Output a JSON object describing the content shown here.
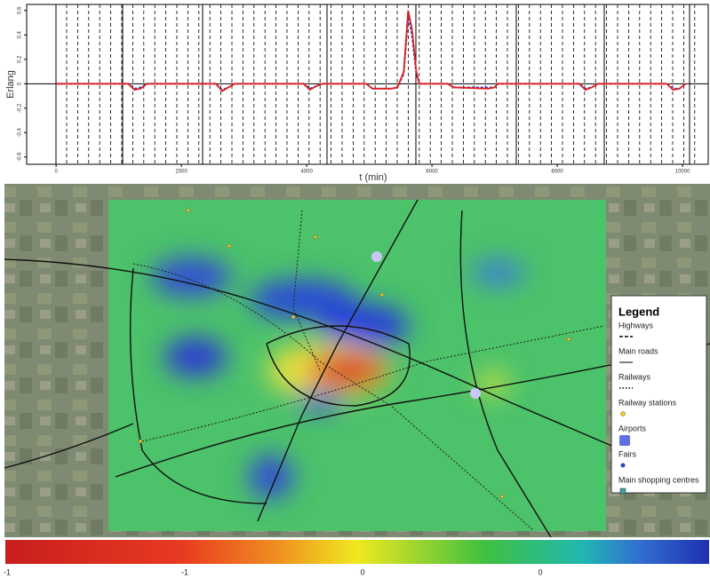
{
  "chart_data": {
    "type": "line",
    "ylabel": "Erlang",
    "xlabel": "t (min)",
    "xlim": [
      -470,
      10410
    ],
    "ylim": [
      -0.66,
      0.65
    ],
    "xticks": [
      0,
      2000,
      4000,
      6000,
      8000,
      10000
    ],
    "yticks": [
      0.6,
      0.4,
      0.2,
      0,
      -0.2,
      -0.4,
      -0.6
    ],
    "x": [
      0,
      1150,
      1250,
      1350,
      1450,
      2550,
      2650,
      2750,
      2850,
      3950,
      4050,
      4150,
      4250,
      4950,
      5050,
      5350,
      5450,
      5550,
      5620,
      5680,
      5750,
      5800,
      5850,
      6250,
      6350,
      6900,
      7000,
      7050,
      8350,
      8450,
      8550,
      8650,
      9750,
      9850,
      9950,
      10050
    ],
    "series": [
      {
        "color": "#1f3fd0",
        "values": [
          0,
          0,
          -0.04,
          -0.03,
          0,
          0,
          -0.05,
          -0.03,
          0,
          0,
          -0.04,
          -0.02,
          0,
          0,
          -0.04,
          -0.04,
          -0.03,
          0.08,
          0.55,
          0.4,
          0.08,
          0,
          0,
          0,
          -0.03,
          -0.03,
          -0.03,
          0,
          0,
          -0.04,
          -0.03,
          0,
          0,
          -0.04,
          -0.04,
          0
        ]
      },
      {
        "color": "#e02020",
        "values": [
          0,
          0,
          -0.05,
          -0.04,
          0,
          0,
          -0.06,
          -0.03,
          0,
          0,
          -0.05,
          -0.02,
          0,
          0,
          -0.04,
          -0.04,
          -0.03,
          0.1,
          0.6,
          0.45,
          0.1,
          0,
          0,
          0,
          -0.03,
          -0.04,
          -0.03,
          0,
          0,
          -0.05,
          -0.03,
          0,
          0,
          -0.05,
          -0.04,
          0
        ]
      }
    ]
  },
  "map": {
    "legend": {
      "title": "Legend",
      "items": [
        "Highways",
        "Main roads",
        "Railways",
        "Railway stations",
        "Airports",
        "Fairs",
        "Main shopping centres"
      ]
    }
  },
  "colorbar": {
    "labels": [
      "-1",
      "-1",
      "0",
      "0"
    ]
  }
}
